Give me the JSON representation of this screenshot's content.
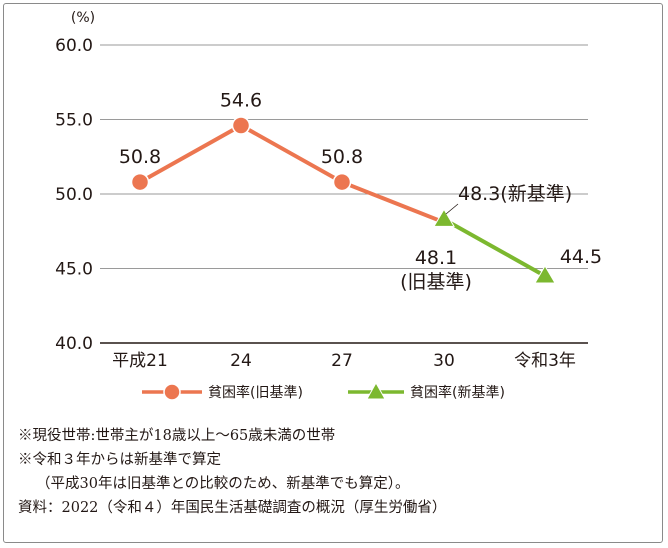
{
  "chart_data": {
    "type": "line",
    "ylabel": "(%)",
    "ylim": [
      40.0,
      60.0
    ],
    "yticks": [
      "60.0",
      "55.0",
      "50.0",
      "45.0",
      "40.0"
    ],
    "categories": [
      "平成21",
      "24",
      "27",
      "30",
      "令和3年"
    ],
    "grid": true,
    "legend_placement": "bottom",
    "series": [
      {
        "name": "貧困率(旧基準)",
        "color": "#ec7650",
        "marker": "circle",
        "points": [
          {
            "category": "平成21",
            "value": 50.8,
            "label": "50.8"
          },
          {
            "category": "24",
            "value": 54.6,
            "label": "54.6"
          },
          {
            "category": "27",
            "value": 50.8,
            "label": "50.8"
          },
          {
            "category": "30",
            "value": 48.1,
            "label": "48.1",
            "label_line2": "(旧基準)"
          }
        ]
      },
      {
        "name": "貧困率(新基準)",
        "color": "#7cb82f",
        "marker": "triangle",
        "points": [
          {
            "category": "30",
            "value": 48.3,
            "label": "48.3(新基準)"
          },
          {
            "category": "令和3年",
            "value": 44.5,
            "label": "44.5"
          }
        ]
      }
    ]
  },
  "notes": [
    "※現役世帯:世帯主が18歳以上〜65歳未満の世帯",
    "※令和３年からは新基準で算定",
    "（平成30年は旧基準との比較のため、新基準でも算定）。",
    "資料：2022（令和４）年国民生活基礎調査の概況（厚生労働省）"
  ]
}
